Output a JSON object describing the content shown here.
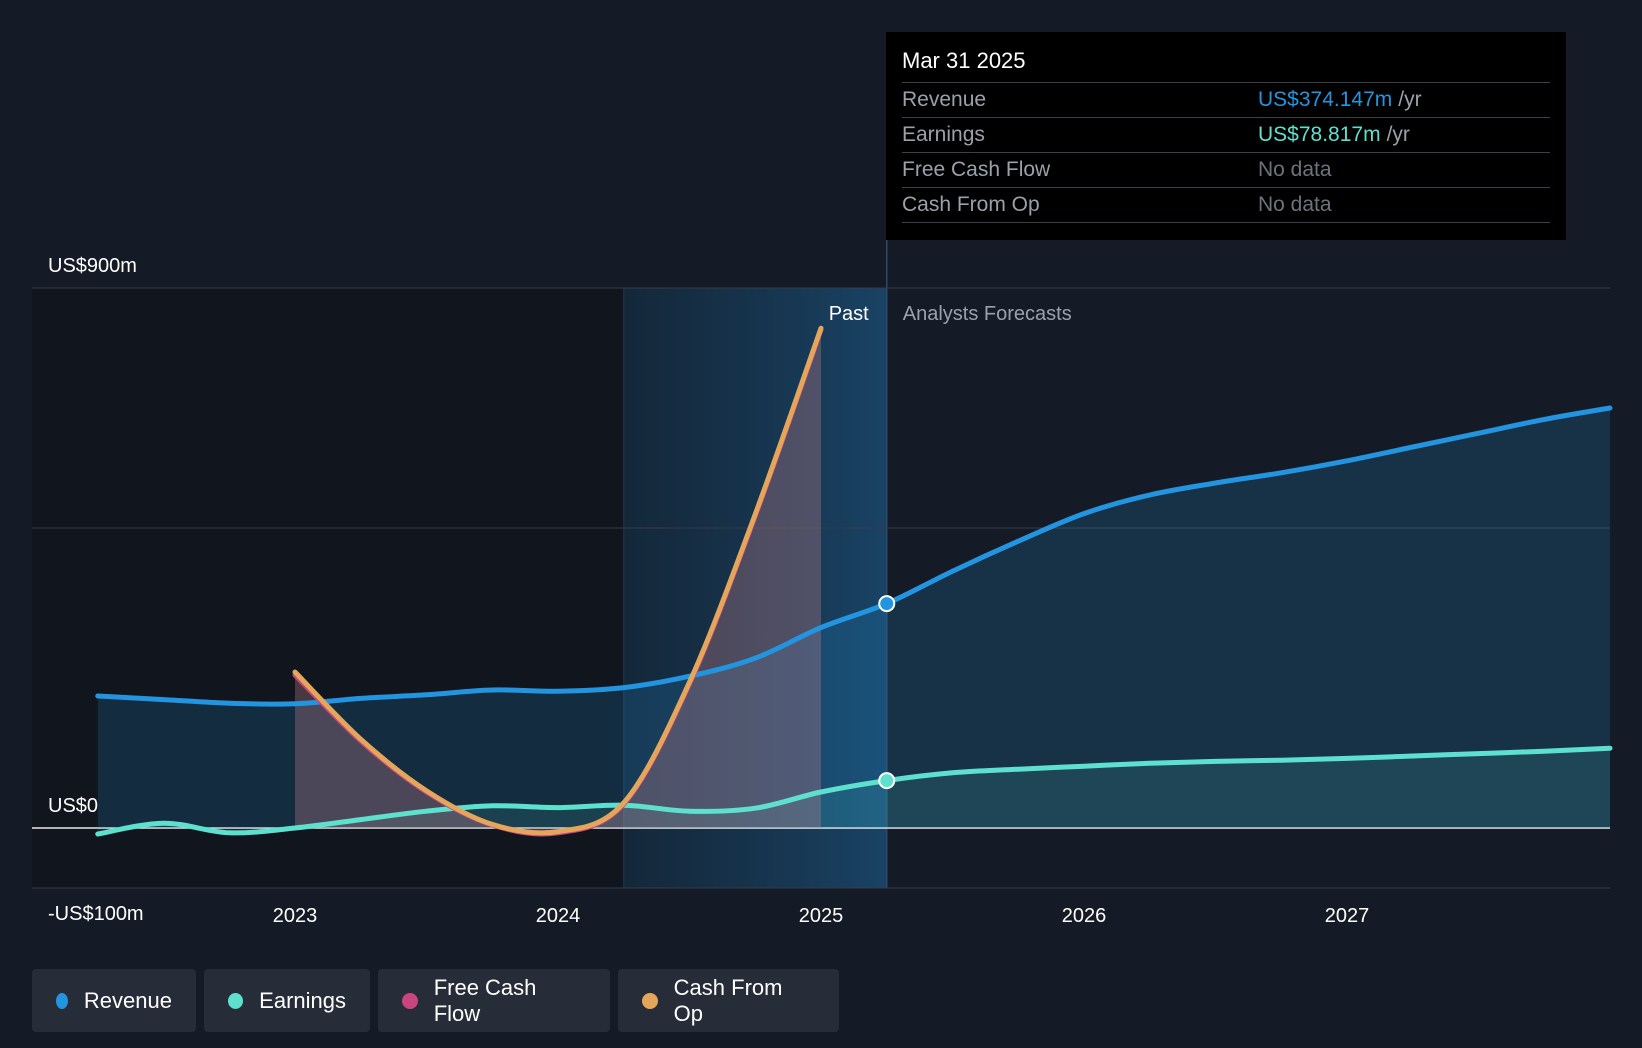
{
  "tooltip": {
    "date": "Mar 31 2025",
    "rows": [
      {
        "label": "Revenue",
        "value": "US$374.147m",
        "unit": "/yr",
        "color": "#2394df"
      },
      {
        "label": "Earnings",
        "value": "US$78.817m",
        "unit": "/yr",
        "color": "#5ee0cf"
      },
      {
        "label": "Free Cash Flow",
        "value": "No data",
        "unit": ""
      },
      {
        "label": "Cash From Op",
        "value": "No data",
        "unit": ""
      }
    ]
  },
  "legend": [
    {
      "label": "Revenue",
      "color": "#2394df"
    },
    {
      "label": "Earnings",
      "color": "#5ee0cf"
    },
    {
      "label": "Free Cash Flow",
      "color": "#c8457f"
    },
    {
      "label": "Cash From Op",
      "color": "#e3a65a"
    }
  ],
  "chart_data": {
    "type": "line",
    "y_tick_labels": [
      "US$900m",
      "US$0",
      "-US$100m"
    ],
    "y_ticks": [
      900,
      0,
      -100
    ],
    "ylim": [
      -100,
      900
    ],
    "x_ticks": [
      2023,
      2024,
      2025,
      2026,
      2027
    ],
    "xlim": [
      2022.0,
      2028.0
    ],
    "grid_values": [
      900,
      500,
      0,
      -100
    ],
    "past_label": "Past",
    "forecast_label": "Analysts Forecasts",
    "divider_x": 2025.25,
    "highlight_start_x": 2024.25,
    "dark_region_end_x": 2024.25,
    "series": [
      {
        "name": "Revenue",
        "color": "#2394df",
        "x": [
          2022.25,
          2022.5,
          2022.75,
          2023.0,
          2023.25,
          2023.5,
          2023.75,
          2024.0,
          2024.25,
          2024.5,
          2024.75,
          2025.0,
          2025.25,
          2025.5,
          2025.75,
          2026.0,
          2026.25,
          2026.5,
          2026.75,
          2027.0,
          2027.25,
          2027.5,
          2027.75,
          2028.0
        ],
        "values": [
          220,
          214,
          208,
          207,
          216,
          222,
          230,
          228,
          234,
          253,
          283,
          334,
          374,
          428,
          478,
          524,
          555,
          575,
          592,
          612,
          635,
          658,
          681,
          700
        ],
        "fill": true
      },
      {
        "name": "Earnings",
        "color": "#5ee0cf",
        "x": [
          2022.25,
          2022.5,
          2022.75,
          2023.0,
          2023.25,
          2023.5,
          2023.75,
          2024.0,
          2024.25,
          2024.5,
          2024.75,
          2025.0,
          2025.25,
          2025.5,
          2025.75,
          2026.0,
          2026.25,
          2026.5,
          2026.75,
          2027.0,
          2027.25,
          2027.5,
          2027.75,
          2028.0
        ],
        "values": [
          -10,
          8,
          -8,
          0,
          14,
          28,
          37,
          34,
          38,
          28,
          33,
          60,
          79,
          92,
          98,
          103,
          108,
          111,
          113,
          116,
          120,
          124,
          128,
          133
        ],
        "fill": true
      },
      {
        "name": "Free Cash Flow",
        "color": "#c8457f",
        "x": [
          2023.0,
          2023.25,
          2023.5,
          2023.75,
          2024.0,
          2024.25,
          2024.5,
          2024.75,
          2025.0
        ],
        "values": [
          255,
          145,
          60,
          5,
          -8,
          40,
          240,
          520,
          830
        ],
        "fill": false
      },
      {
        "name": "Cash From Op",
        "color": "#e3a65a",
        "x": [
          2023.0,
          2023.25,
          2023.5,
          2023.75,
          2024.0,
          2024.25,
          2024.5,
          2024.75,
          2025.0
        ],
        "values": [
          260,
          148,
          62,
          6,
          -6,
          42,
          243,
          523,
          833
        ],
        "fill": true
      }
    ],
    "highlight_points": [
      {
        "series": "Revenue",
        "x": 2025.25,
        "value": 374
      },
      {
        "series": "Earnings",
        "x": 2025.25,
        "value": 79
      }
    ]
  }
}
